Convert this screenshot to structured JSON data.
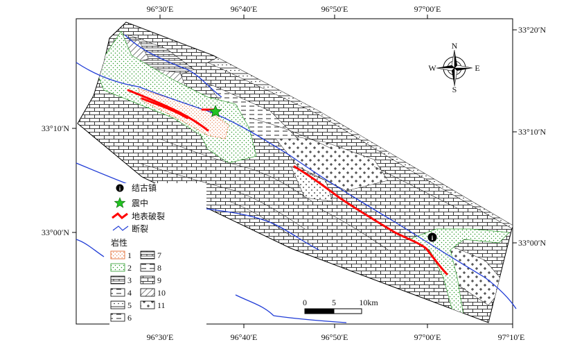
{
  "map": {
    "top_ticks": [
      "96°30′E",
      "96°40′E",
      "96°50′E",
      "97°00′E"
    ],
    "bottom_ticks": [
      "96°30′E",
      "96°40′E",
      "96°50′E",
      "97°00′E",
      "97°10′E"
    ],
    "left_ticks": [
      "33°10′N",
      "33°00′N"
    ],
    "right_ticks": [
      "33°20′N",
      "33°10′N",
      "33°00′N"
    ],
    "compass": {
      "n": "N",
      "s": "S",
      "e": "E",
      "w": "W"
    },
    "scale": {
      "zero": "0",
      "mid": "5",
      "end": "10km"
    },
    "legend": {
      "town": "结古镇",
      "epicenter": "震中",
      "rupture": "地表破裂",
      "fault": "断裂",
      "lithology_title": "岩性",
      "lithology_numbers": [
        "1",
        "2",
        "3",
        "4",
        "5",
        "6",
        "7",
        "8",
        "9",
        "10",
        "11"
      ]
    },
    "colors": {
      "rupture": "#ff0000",
      "fault": "#1f3bd6",
      "epicenter": "#22c422",
      "unit1_dots": "#e05a1a",
      "unit2_dots": "#2a9a2a"
    }
  }
}
